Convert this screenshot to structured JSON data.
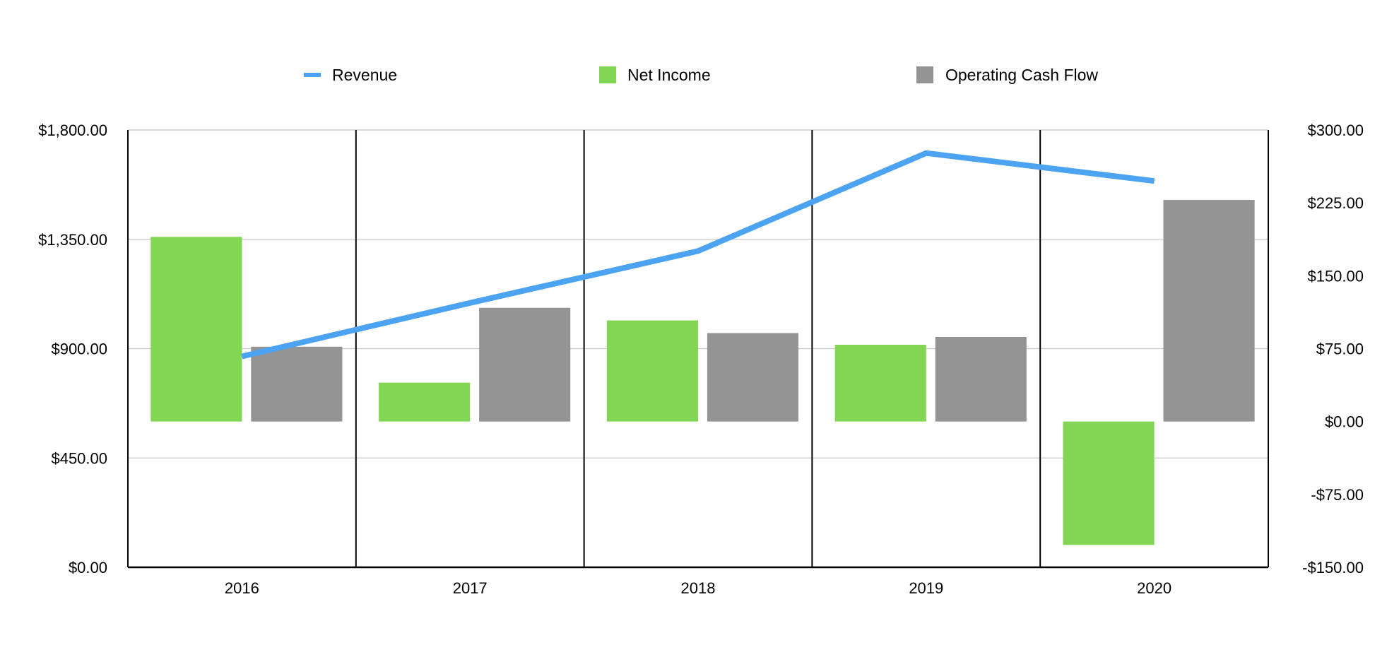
{
  "chart_data": {
    "type": "bar",
    "categories": [
      "2016",
      "2017",
      "2018",
      "2019",
      "2020"
    ],
    "series": [
      {
        "name": "Revenue",
        "kind": "line",
        "axis": "left",
        "color": "#4BA3F2",
        "values": [
          868,
          1088,
          1302,
          1705,
          1590
        ]
      },
      {
        "name": "Net Income",
        "kind": "bar",
        "axis": "right",
        "color": "#83D653",
        "values": [
          190,
          40,
          104,
          79,
          -127
        ]
      },
      {
        "name": "Operating Cash Flow",
        "kind": "bar",
        "axis": "right",
        "color": "#949494",
        "values": [
          77,
          117,
          91,
          87,
          228
        ]
      }
    ],
    "left_axis": {
      "ylim": [
        0,
        1800
      ],
      "ticks": [
        0,
        450,
        900,
        1350,
        1800
      ],
      "tick_labels": [
        "$0.00",
        "$450.00",
        "$900.00",
        "$1,350.00",
        "$1,800.00"
      ]
    },
    "right_axis": {
      "ylim": [
        -150,
        300
      ],
      "ticks": [
        -150,
        -75,
        0,
        75,
        150,
        225,
        300
      ],
      "tick_labels": [
        "-$150.00",
        "-$75.00",
        "$0.00",
        "$75.00",
        "$150.00",
        "$225.00",
        "$300.00"
      ]
    },
    "legend_position": "top-center",
    "grid": true,
    "title": "",
    "xlabel": "",
    "ylabel": ""
  }
}
